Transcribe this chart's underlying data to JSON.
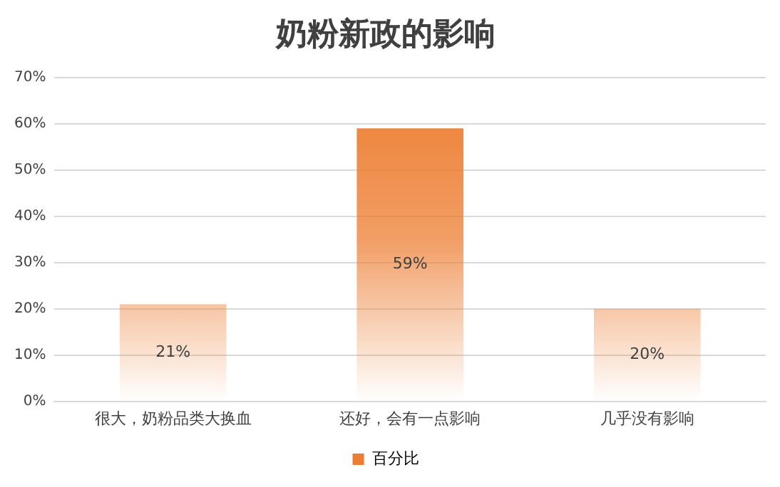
{
  "chart_data": {
    "type": "bar",
    "title": "奶粉新政的影响",
    "categories": [
      "很大，奶粉品类大换血",
      "还好，会有一点影响",
      "几乎没有影响"
    ],
    "series": [
      {
        "name": "百分比",
        "color": "#ed7d31",
        "values": [
          21,
          59,
          20
        ],
        "value_labels": [
          "21%",
          "59%",
          "20%"
        ]
      }
    ],
    "ylim": [
      0,
      70
    ],
    "yticks": [
      {
        "value": 0,
        "label": "0%"
      },
      {
        "value": 10,
        "label": "10%"
      },
      {
        "value": 20,
        "label": "20%"
      },
      {
        "value": 30,
        "label": "30%"
      },
      {
        "value": 40,
        "label": "40%"
      },
      {
        "value": 50,
        "label": "50%"
      },
      {
        "value": 60,
        "label": "60%"
      },
      {
        "value": 70,
        "label": "70%"
      }
    ],
    "grid": "y",
    "legend": "bottom"
  }
}
